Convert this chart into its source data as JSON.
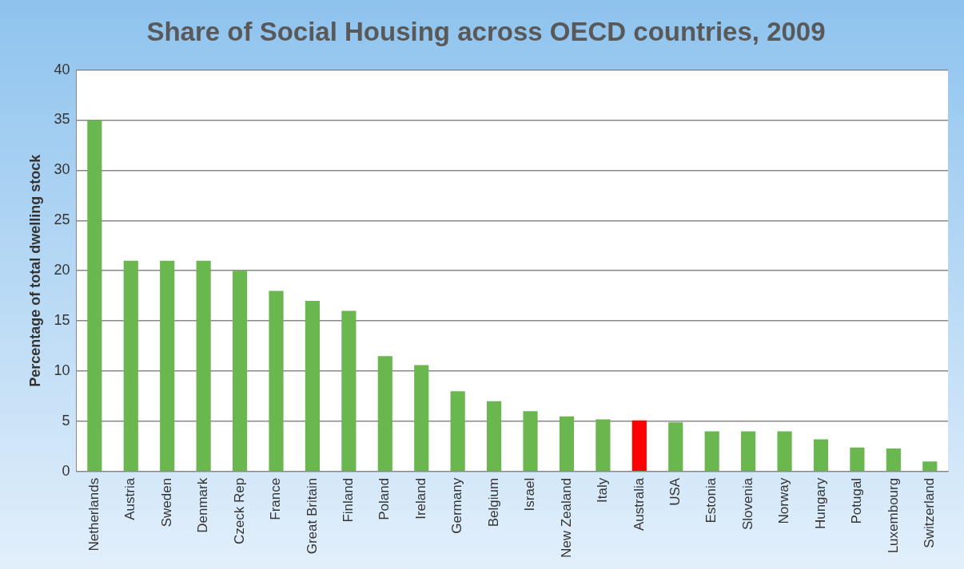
{
  "chart_data": {
    "type": "bar",
    "title": "Share of Social Housing across OECD countries, 2009",
    "ylabel": "Percentage of total dwelling stock",
    "categories": [
      "Netherlands",
      "Austria",
      "Sweden",
      "Denmark",
      "Czeck Rep",
      "France",
      "Great Britain",
      "Finland",
      "Poland",
      "Ireland",
      "Germany",
      "Belgium",
      "Israel",
      "New Zealand",
      "Italy",
      "Australia",
      "USA",
      "Estonia",
      "Slovenia",
      "Norway",
      "Hungary",
      "Potugal",
      "Luxembourg",
      "Switzerland"
    ],
    "values": [
      35,
      21,
      21,
      21,
      20,
      18,
      17,
      16,
      11.5,
      10.6,
      8,
      7,
      6,
      5.5,
      5.2,
      5.1,
      4.9,
      4,
      4,
      4,
      3.2,
      2.4,
      2.3,
      1
    ],
    "colors": [
      "#6ab74f",
      "#6ab74f",
      "#6ab74f",
      "#6ab74f",
      "#6ab74f",
      "#6ab74f",
      "#6ab74f",
      "#6ab74f",
      "#6ab74f",
      "#6ab74f",
      "#6ab74f",
      "#6ab74f",
      "#6ab74f",
      "#6ab74f",
      "#6ab74f",
      "#ff0000",
      "#6ab74f",
      "#6ab74f",
      "#6ab74f",
      "#6ab74f",
      "#6ab74f",
      "#6ab74f",
      "#6ab74f",
      "#6ab74f"
    ],
    "ylim": [
      0,
      40
    ],
    "yticks": [
      0,
      5,
      10,
      15,
      20,
      25,
      30,
      35,
      40
    ],
    "grid": "y",
    "legend": false
  }
}
